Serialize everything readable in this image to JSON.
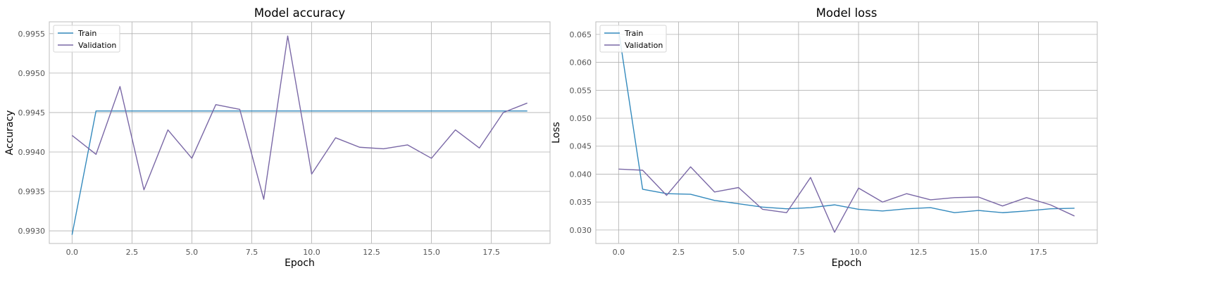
{
  "chart_data": [
    {
      "type": "line",
      "title": "Model accuracy",
      "xlabel": "Epoch",
      "ylabel": "Accuracy",
      "xlim": [
        -0.95,
        19.95
      ],
      "ylim": [
        0.99284,
        0.99565
      ],
      "xticks": [
        0.0,
        2.5,
        5.0,
        7.5,
        10.0,
        12.5,
        15.0,
        17.5
      ],
      "xtick_labels": [
        "0.0",
        "2.5",
        "5.0",
        "7.5",
        "10.0",
        "12.5",
        "15.0",
        "17.5"
      ],
      "yticks": [
        0.993,
        0.9935,
        0.994,
        0.9945,
        0.995,
        0.9955
      ],
      "ytick_labels": [
        "0.9930",
        "0.9935",
        "0.9940",
        "0.9945",
        "0.9950",
        "0.9955"
      ],
      "grid": true,
      "legend_position": "upper-left",
      "x": [
        0,
        1,
        2,
        3,
        4,
        5,
        6,
        7,
        8,
        9,
        10,
        11,
        12,
        13,
        14,
        15,
        16,
        17,
        18,
        19
      ],
      "series": [
        {
          "name": "Train",
          "color": "#348abd",
          "values": [
            0.99295,
            0.99452,
            0.99452,
            0.99452,
            0.99452,
            0.99452,
            0.99452,
            0.99452,
            0.99452,
            0.99452,
            0.99452,
            0.99452,
            0.99452,
            0.99452,
            0.99452,
            0.99452,
            0.99452,
            0.99452,
            0.99452,
            0.99452
          ]
        },
        {
          "name": "Validation",
          "color": "#7a68a6",
          "values": [
            0.99421,
            0.99397,
            0.99483,
            0.99352,
            0.99428,
            0.99392,
            0.9946,
            0.99454,
            0.9934,
            0.99547,
            0.99372,
            0.99418,
            0.99406,
            0.99404,
            0.99409,
            0.99392,
            0.99428,
            0.99405,
            0.9945,
            0.99462
          ]
        }
      ]
    },
    {
      "type": "line",
      "title": "Model loss",
      "xlabel": "Epoch",
      "ylabel": "Loss",
      "xlim": [
        -0.95,
        19.95
      ],
      "ylim": [
        0.02759,
        0.06725
      ],
      "xticks": [
        0.0,
        2.5,
        5.0,
        7.5,
        10.0,
        12.5,
        15.0,
        17.5
      ],
      "xtick_labels": [
        "0.0",
        "2.5",
        "5.0",
        "7.5",
        "10.0",
        "12.5",
        "15.0",
        "17.5"
      ],
      "yticks": [
        0.03,
        0.035,
        0.04,
        0.045,
        0.05,
        0.055,
        0.06,
        0.065
      ],
      "ytick_labels": [
        "0.030",
        "0.035",
        "0.040",
        "0.045",
        "0.050",
        "0.055",
        "0.060",
        "0.065"
      ],
      "grid": true,
      "legend_position": "upper-left",
      "x": [
        0,
        1,
        2,
        3,
        4,
        5,
        6,
        7,
        8,
        9,
        10,
        11,
        12,
        13,
        14,
        15,
        16,
        17,
        18,
        19
      ],
      "series": [
        {
          "name": "Train",
          "color": "#348abd",
          "values": [
            0.0657,
            0.0373,
            0.0365,
            0.0364,
            0.0353,
            0.0347,
            0.0341,
            0.0338,
            0.034,
            0.0345,
            0.0337,
            0.0334,
            0.0338,
            0.034,
            0.0331,
            0.0335,
            0.0331,
            0.0334,
            0.0338,
            0.0339
          ]
        },
        {
          "name": "Validation",
          "color": "#7a68a6",
          "values": [
            0.0409,
            0.0407,
            0.0362,
            0.0413,
            0.0368,
            0.0376,
            0.0337,
            0.0331,
            0.0394,
            0.0296,
            0.0375,
            0.035,
            0.0365,
            0.0354,
            0.0358,
            0.0359,
            0.0343,
            0.0358,
            0.0345,
            0.0325
          ]
        }
      ]
    }
  ]
}
